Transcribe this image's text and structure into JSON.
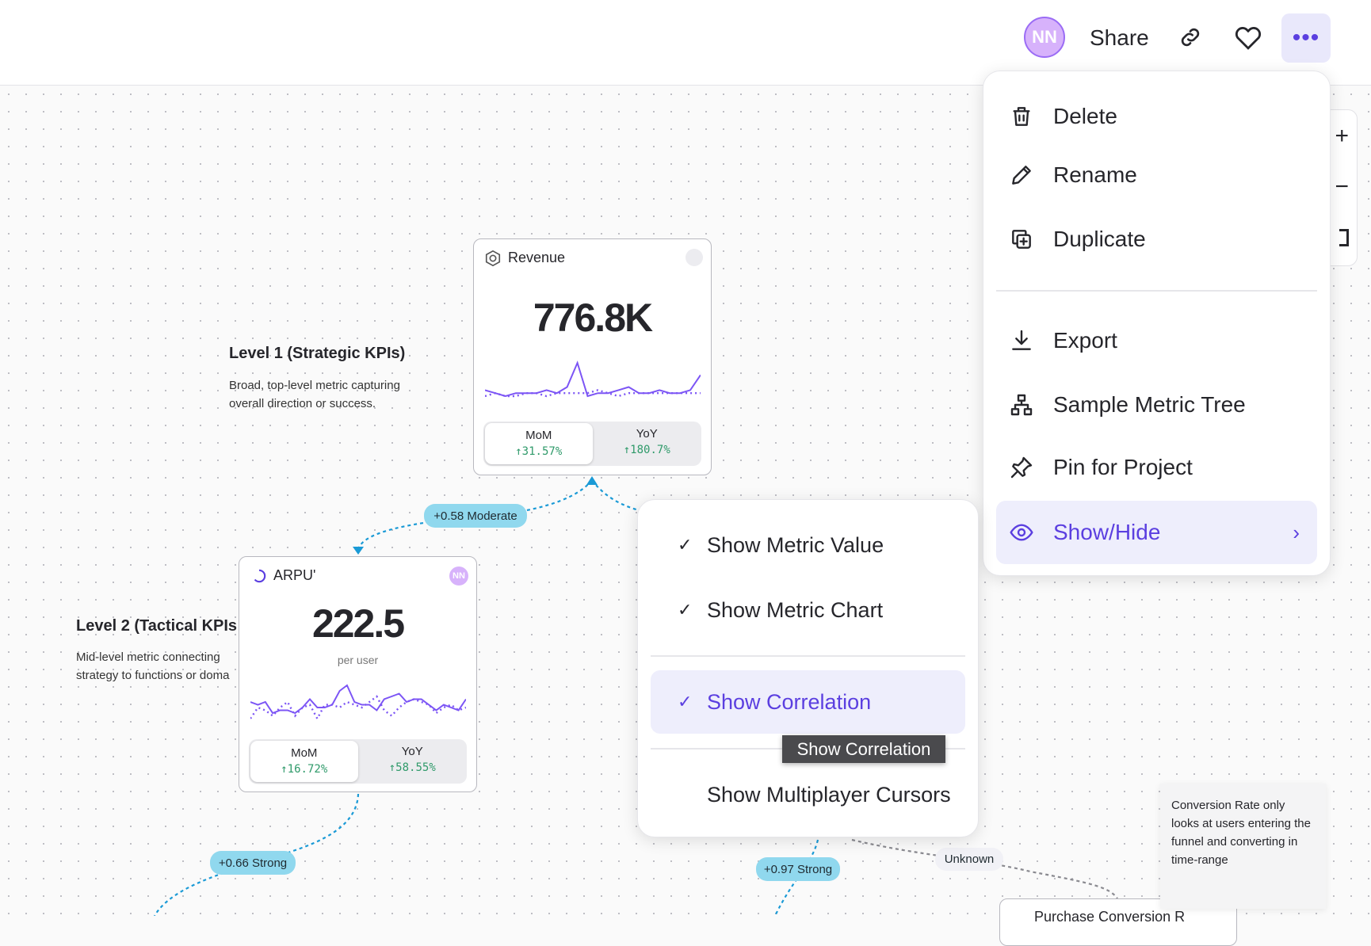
{
  "header": {
    "avatar_initials": "NN",
    "share_label": "Share",
    "icons": [
      "link-icon",
      "heart-icon",
      "more-icon"
    ]
  },
  "main_menu": {
    "items": [
      {
        "label": "Delete",
        "icon": "trash-icon"
      },
      {
        "label": "Rename",
        "icon": "pencil-icon"
      },
      {
        "label": "Duplicate",
        "icon": "duplicate-icon"
      },
      {
        "label": "Export",
        "icon": "download-icon"
      },
      {
        "label": "Sample Metric Tree",
        "icon": "hierarchy-icon"
      },
      {
        "label": "Pin for Project",
        "icon": "pin-icon"
      },
      {
        "label": "Show/Hide",
        "icon": "eye-icon",
        "active": true
      }
    ]
  },
  "submenu": {
    "items": [
      {
        "label": "Show Metric Value",
        "checked": true
      },
      {
        "label": "Show Metric Chart",
        "checked": true
      },
      {
        "label": "Show Correlation",
        "checked": true,
        "active": true
      },
      {
        "label": "Show Multiplayer Cursors",
        "checked": false
      }
    ]
  },
  "tooltip": "Show Correlation",
  "levels": [
    {
      "title": "Level 1 (Strategic KPIs)",
      "desc": "Broad, top-level metric capturing overall direction or success."
    },
    {
      "title": "Level 2 (Tactical KPIs",
      "desc": "Mid-level metric connecting strategy to functions or doma"
    }
  ],
  "cards": {
    "revenue": {
      "title": "Revenue",
      "value": "776.8K",
      "mom_label": "MoM",
      "mom": "31.57%",
      "yoy_label": "YoY",
      "yoy": "180.7%",
      "spark": [
        3,
        2,
        1,
        2,
        2,
        2,
        3,
        2,
        4,
        12,
        1,
        2,
        2,
        3,
        4,
        2,
        2,
        3,
        2,
        2,
        3,
        8
      ],
      "spark_prev": [
        1,
        2,
        1,
        1,
        2,
        2,
        1,
        2,
        2,
        2,
        2,
        3,
        2,
        1,
        2,
        2,
        2,
        2,
        2,
        2,
        2,
        2
      ]
    },
    "arpu": {
      "title": "ARPU'",
      "avatar": "NN",
      "value": "222.5",
      "unit": "per user",
      "mom_label": "MoM",
      "mom": "16.72%",
      "yoy_label": "YoY",
      "yoy": "58.55%",
      "spark": [
        6,
        5,
        6,
        2,
        3,
        3,
        2,
        4,
        7,
        4,
        4,
        5,
        10,
        12,
        6,
        5,
        5,
        3,
        7,
        8,
        9,
        6,
        7,
        7,
        5,
        3,
        5,
        4,
        3,
        7
      ],
      "spark_prev": [
        0,
        4,
        3,
        1,
        4,
        6,
        1,
        4,
        5,
        0,
        5,
        5,
        4,
        6,
        5,
        4,
        6,
        8,
        3,
        1,
        4,
        6,
        7,
        6,
        5,
        2,
        4,
        5,
        3,
        4
      ]
    },
    "purchase": {
      "title": "Purchase Conversion R"
    }
  },
  "correlations": {
    "rev_arpu": "+0.58 Moderate",
    "arpu_down": "+0.66 Strong",
    "sub_down": "+0.97 Strong",
    "unknown": "Unknown"
  },
  "note": "Conversion Rate only looks at users entering the funnel and converting in time-range",
  "colors": {
    "accent": "#5b3fe0",
    "spark": "#7c55f5",
    "positive": "#2f9a6a",
    "connector": "#1a9ad6",
    "pill": "#90d8ee"
  }
}
